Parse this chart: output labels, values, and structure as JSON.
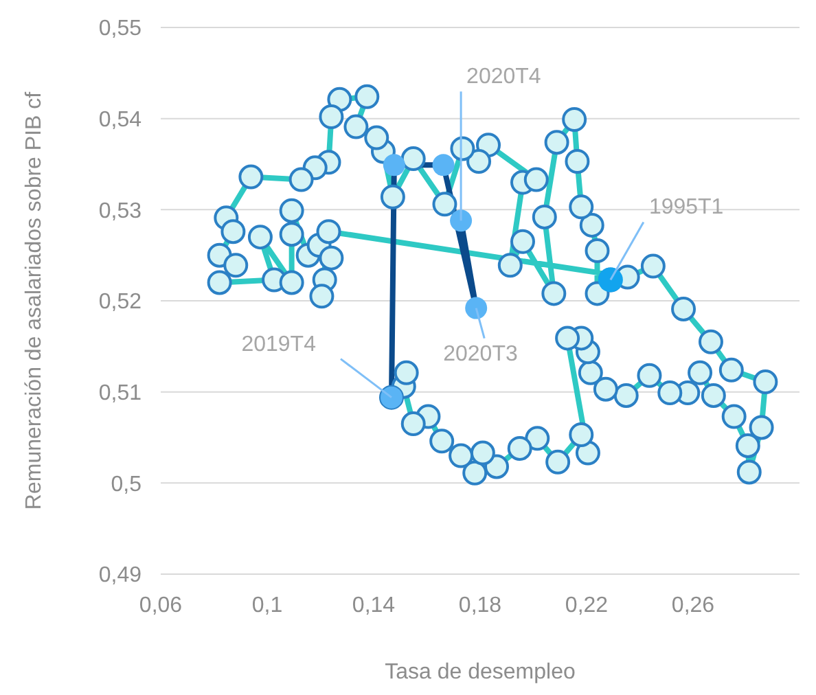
{
  "chart_data": {
    "type": "line",
    "xlabel": "Tasa de desempleo",
    "ylabel": "Remuneración de asalariados sobre PIB cf",
    "xlim": [
      0.06,
      0.3
    ],
    "ylim": [
      0.49,
      0.55
    ],
    "xticks": [
      {
        "value": 0.06,
        "label": "0,06"
      },
      {
        "value": 0.1,
        "label": "0,1"
      },
      {
        "value": 0.14,
        "label": "0,14"
      },
      {
        "value": 0.18,
        "label": "0,18"
      },
      {
        "value": 0.22,
        "label": "0,22"
      },
      {
        "value": 0.26,
        "label": "0,26"
      }
    ],
    "yticks": [
      {
        "value": 0.49,
        "label": "0,49"
      },
      {
        "value": 0.5,
        "label": "0,5"
      },
      {
        "value": 0.51,
        "label": "0,51"
      },
      {
        "value": 0.52,
        "label": "0,52"
      },
      {
        "value": 0.53,
        "label": "0,53"
      },
      {
        "value": 0.54,
        "label": "0,54"
      },
      {
        "value": 0.55,
        "label": "0,55"
      }
    ],
    "grid": "y",
    "marker": "circle",
    "legend": false,
    "series": [
      {
        "color": "#2ec9c4",
        "x": [
          0.229,
          0.224,
          0.224,
          0.222,
          0.218,
          0.2165,
          0.2154,
          0.2088,
          0.2042,
          0.2077,
          0.196,
          0.1913,
          0.196,
          0.2011,
          0.1831,
          0.1795,
          0.1734,
          0.1667,
          0.1549,
          0.1472,
          0.1436,
          0.1411,
          0.1334,
          0.1375,
          0.1272,
          0.1241,
          0.1231,
          0.118,
          0.1128,
          0.0939,
          0.0846,
          0.0872,
          0.0821,
          0.0882,
          0.0821,
          0.1026,
          0.0974,
          0.1092,
          0.1092,
          0.1092,
          0.1154,
          0.1195,
          0.1241,
          0.1216,
          0.1205,
          0.1231,
          0.2354,
          0.245,
          0.2564,
          0.2667,
          0.2744,
          0.2872,
          0.2857,
          0.2811,
          0.2806,
          0.2754,
          0.2677,
          0.2626,
          0.258,
          0.2513,
          0.2436,
          0.2349,
          0.2272,
          0.2215,
          0.2205,
          0.218,
          0.2128,
          0.2205,
          0.218,
          0.2092,
          0.2015,
          0.1949,
          0.1862,
          0.178,
          0.181,
          0.1728,
          0.1656,
          0.1605,
          0.1549,
          0.1513,
          0.1523,
          0.1467
        ],
        "values": [
          0.5223,
          0.5208,
          0.5255,
          0.5283,
          0.5303,
          0.5353,
          0.5399,
          0.5374,
          0.5292,
          0.5208,
          0.5265,
          0.5239,
          0.533,
          0.5333,
          0.5371,
          0.5353,
          0.5367,
          0.5306,
          0.5356,
          0.5314,
          0.5364,
          0.5379,
          0.5391,
          0.5424,
          0.5421,
          0.5402,
          0.5352,
          0.5346,
          0.5333,
          0.5336,
          0.5291,
          0.5276,
          0.525,
          0.5239,
          0.522,
          0.5223,
          0.527,
          0.522,
          0.5273,
          0.5299,
          0.525,
          0.5261,
          0.5247,
          0.5223,
          0.5205,
          0.5276,
          0.5226,
          0.5238,
          0.5191,
          0.5155,
          0.5124,
          0.5111,
          0.5061,
          0.5012,
          0.5041,
          0.5073,
          0.5096,
          0.5121,
          0.5099,
          0.5099,
          0.5118,
          0.5096,
          0.5103,
          0.5121,
          0.5144,
          0.5159,
          0.5159,
          0.5033,
          0.5053,
          0.5023,
          0.5049,
          0.5038,
          0.5018,
          0.5011,
          0.5033,
          0.503,
          0.5046,
          0.5073,
          0.5065,
          0.5106,
          0.5121,
          0.5094
        ]
      },
      {
        "color": "#0b4a8b",
        "x": [
          0.1467,
          0.1477,
          0.1662,
          0.1785,
          0.1728
        ],
        "values": [
          0.5094,
          0.5349,
          0.5349,
          0.5192,
          0.5288
        ]
      },
      {
        "type": "scatter",
        "color": "#12a4ee",
        "x": [
          0.229
        ],
        "values": [
          0.5223
        ]
      }
    ],
    "annotations": [
      {
        "text": "1995T1",
        "x": 0.229,
        "y": 0.5223
      },
      {
        "text": "2020T4",
        "x": 0.1728,
        "y": 0.5288
      },
      {
        "text": "2019T4",
        "x": 0.1467,
        "y": 0.5094
      },
      {
        "text": "2020T3",
        "x": 0.1785,
        "y": 0.5192
      }
    ]
  }
}
